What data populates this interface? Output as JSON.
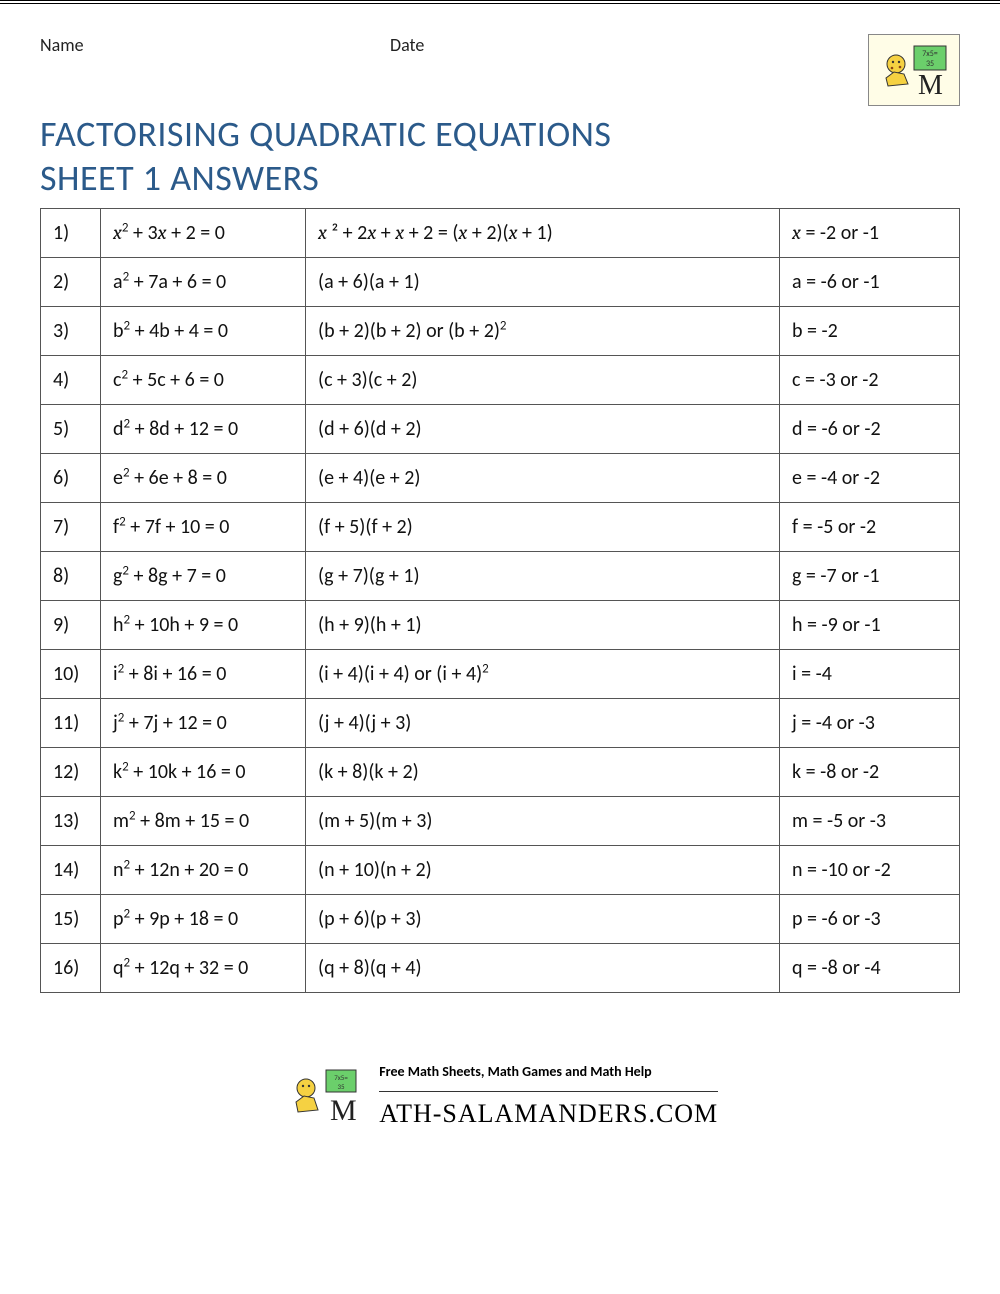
{
  "header": {
    "name_label": "Name",
    "date_label": "Date"
  },
  "title_line1": "FACTORISING QUADRATIC EQUATIONS",
  "title_line2": "SHEET 1 ANSWERS",
  "title_color": "#2b5a8a",
  "answer_color": "#d10000",
  "rows": [
    {
      "n": "1)",
      "v": "x",
      "eq": "² + 3",
      "eq2": " + 2 = 0",
      "fac_html": "<span class='italic'>x</span> ² + 2<span class='italic'>x</span> + <span class='italic'>x</span> + 2 = (<span class='italic'>x</span> + 2)(<span class='italic'>x</span> + 1)",
      "fac_red": false,
      "ans_html": "<span class='italic'>x</span> = -2 or -1",
      "ans_red": false
    },
    {
      "n": "2)",
      "v": "a",
      "eq": "² + 7a + 6 = 0",
      "fac": "(a + 6)(a + 1)",
      "ans": "a = -6 or -1"
    },
    {
      "n": "3)",
      "v": "b",
      "eq": "² + 4b + 4 = 0",
      "fac": "(b + 2)(b + 2) or (b + 2)²",
      "ans": "b = -2"
    },
    {
      "n": "4)",
      "v": "c",
      "eq": "² + 5c + 6 = 0",
      "fac": "(c + 3)(c + 2)",
      "ans": "c = -3 or -2"
    },
    {
      "n": "5)",
      "v": "d",
      "eq": "² + 8d + 12 = 0",
      "fac": "(d + 6)(d + 2)",
      "ans": "d = -6 or -2"
    },
    {
      "n": "6)",
      "v": "e",
      "eq": "² + 6e + 8 = 0",
      "fac": "(e + 4)(e + 2)",
      "ans": "e = -4 or -2"
    },
    {
      "n": "7)",
      "v": "f",
      "eq": "² + 7f + 10 = 0",
      "fac": "(f + 5)(f + 2)",
      "ans": "f = -5 or -2"
    },
    {
      "n": "8)",
      "v": "g",
      "eq": "² + 8g + 7 = 0",
      "fac": "(g + 7)(g + 1)",
      "ans": "g = -7 or -1"
    },
    {
      "n": "9)",
      "v": "h",
      "eq": "² + 10h + 9 = 0",
      "fac": "(h + 9)(h + 1)",
      "ans": "h = -9 or -1"
    },
    {
      "n": "10)",
      "v": "i",
      "eq": "² + 8i + 16 = 0",
      "fac": "(i + 4)(i + 4) or (i + 4)²",
      "ans": "i = -4"
    },
    {
      "n": "11)",
      "v": "j",
      "eq": "² + 7j + 12 = 0",
      "fac": "(j + 4)(j + 3)",
      "ans": "j = -4 or -3"
    },
    {
      "n": "12)",
      "v": "k",
      "eq": "² + 10k + 16 = 0",
      "fac": "(k + 8)(k + 2)",
      "ans": "k = -8 or -2"
    },
    {
      "n": "13)",
      "v": "m",
      "eq": "² + 8m + 15 = 0",
      "fac": "(m + 5)(m + 3)",
      "ans": "m = -5 or -3"
    },
    {
      "n": "14)",
      "v": "n",
      "eq": "² + 12n + 20 = 0",
      "fac": "(n + 10)(n + 2)",
      "ans": "n = -10 or -2"
    },
    {
      "n": "15)",
      "v": "p",
      "eq": "² + 9p + 18 = 0",
      "fac": "(p + 6)(p + 3)",
      "ans": "p = -6 or -3"
    },
    {
      "n": "16)",
      "v": "q",
      "eq": "² + 12q + 32 = 0",
      "fac": "(q + 8)(q + 4)",
      "ans": "q = -8 or -4"
    }
  ],
  "footer": {
    "tagline": "Free Math Sheets, Math Games and Math Help",
    "brand": "ATH-SALAMANDERS.COM"
  }
}
